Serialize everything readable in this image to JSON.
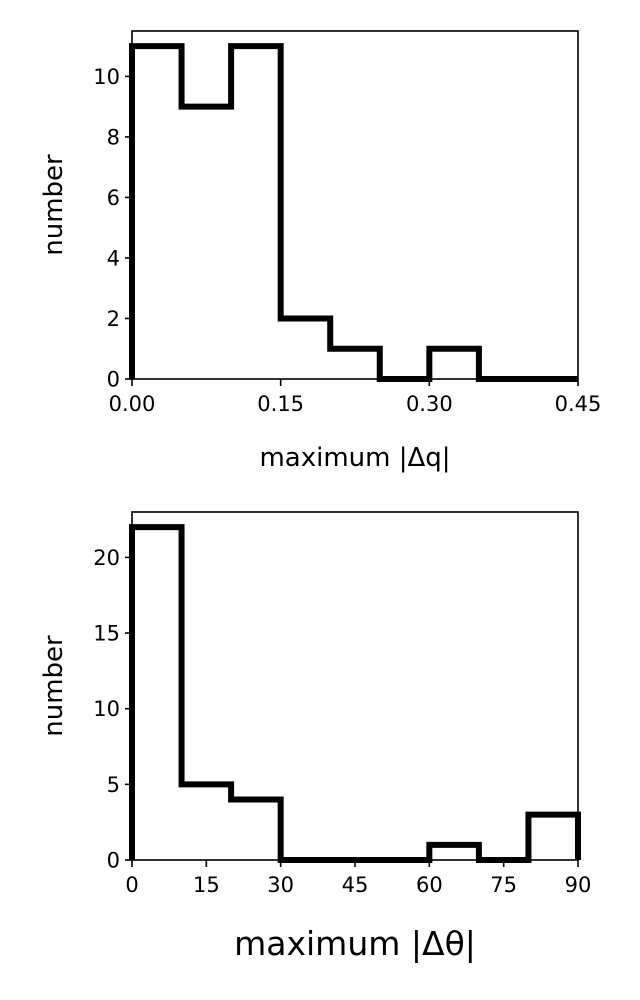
{
  "chart_data": [
    {
      "type": "histogram",
      "xlabel": "maximum |Δq|",
      "ylabel": "number",
      "bin_edges": [
        0,
        0.05,
        0.1,
        0.15,
        0.2,
        0.25,
        0.3,
        0.35,
        0.4,
        0.45
      ],
      "counts": [
        11,
        9,
        11,
        2,
        1,
        0,
        1,
        0,
        0
      ],
      "xlim": [
        0,
        0.45
      ],
      "ylim": [
        0,
        11.5
      ],
      "xticks": [
        0,
        0.15,
        0.3,
        0.45
      ],
      "xtick_labels": [
        "0.00",
        "0.15",
        "0.30",
        "0.45"
      ],
      "yticks": [
        0,
        2,
        4,
        6,
        8,
        10
      ],
      "ytick_labels": [
        "0",
        "2",
        "4",
        "6",
        "8",
        "10"
      ],
      "style": "step",
      "color": "#000000",
      "grid": false
    },
    {
      "type": "histogram",
      "xlabel": "maximum |Δθ|",
      "ylabel": "number",
      "bin_edges": [
        0,
        10,
        20,
        30,
        40,
        50,
        60,
        70,
        80,
        90
      ],
      "counts": [
        22,
        5,
        4,
        0,
        0,
        0,
        1,
        0,
        3
      ],
      "xlim": [
        0,
        90
      ],
      "ylim": [
        0,
        23
      ],
      "xticks": [
        0,
        15,
        30,
        45,
        60,
        75,
        90
      ],
      "xtick_labels": [
        "0",
        "15",
        "30",
        "45",
        "60",
        "75",
        "90"
      ],
      "yticks": [
        0,
        5,
        10,
        15,
        20
      ],
      "ytick_labels": [
        "0",
        "5",
        "10",
        "15",
        "20"
      ],
      "style": "step",
      "color": "#000000",
      "grid": false
    }
  ]
}
